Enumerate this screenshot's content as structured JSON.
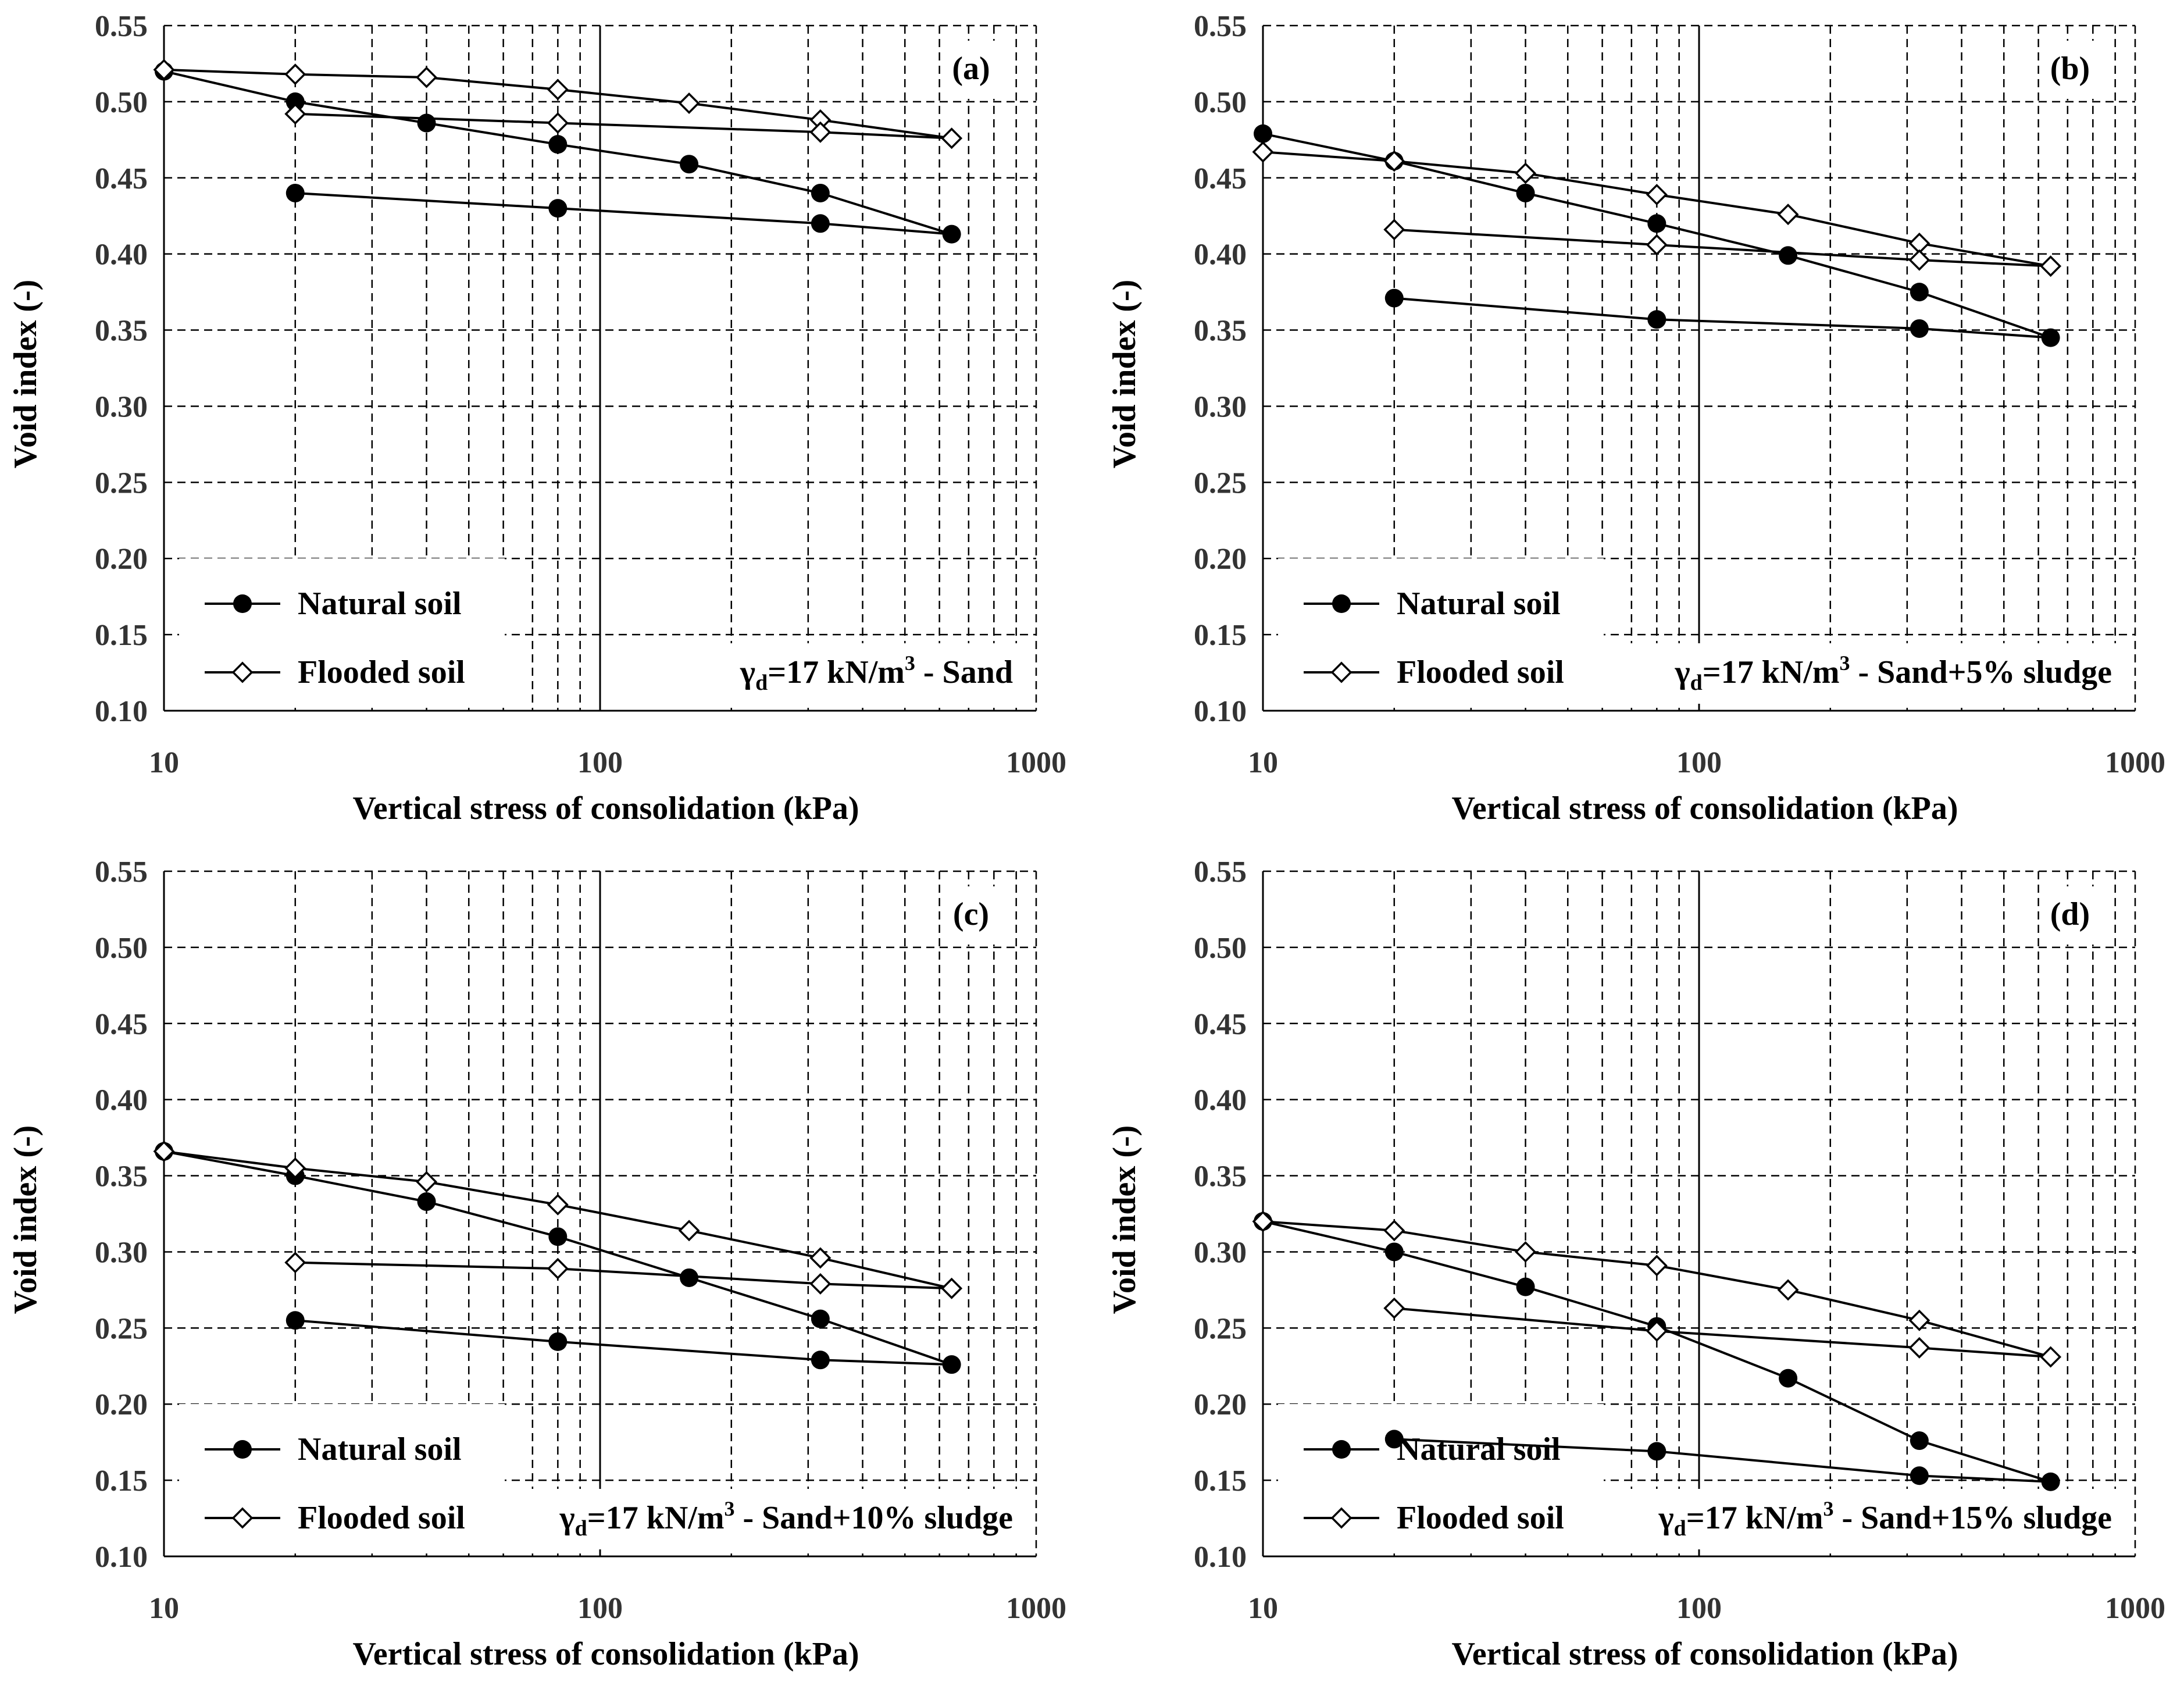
{
  "chart_data": [
    {
      "type": "line",
      "panel_label": "(a)",
      "annotation": {
        "gamma": "γ",
        "sub": "d",
        "pre": "=17 kN/m",
        "sup": "3",
        "post": " - Sand"
      },
      "xlabel": "Vertical stress of consolidation (kPa)",
      "ylabel": "Void index (-)",
      "x_scale": "log",
      "xlim": [
        10,
        1000
      ],
      "ylim": [
        0.1,
        0.55
      ],
      "x_ticks": [
        "10",
        "100",
        "1000"
      ],
      "y_ticks": [
        "0.10",
        "0.15",
        "0.20",
        "0.25",
        "0.30",
        "0.35",
        "0.40",
        "0.45",
        "0.50",
        "0.55"
      ],
      "legend_position": "bottom-left",
      "series": [
        {
          "name": "Natural soil",
          "marker": "filled-circle",
          "x": [
            10,
            20,
            40,
            80,
            160,
            320,
            640,
            320,
            80,
            20
          ],
          "y": [
            0.52,
            0.5,
            0.486,
            0.472,
            0.459,
            0.44,
            0.413,
            0.42,
            0.43,
            0.44
          ]
        },
        {
          "name": "Flooded soil",
          "marker": "open-diamond",
          "x": [
            10,
            20,
            40,
            80,
            160,
            320,
            640,
            320,
            80,
            20
          ],
          "y": [
            0.521,
            0.518,
            0.516,
            0.508,
            0.499,
            0.488,
            0.476,
            0.48,
            0.486,
            0.492
          ]
        }
      ]
    },
    {
      "type": "line",
      "panel_label": "(b)",
      "annotation": {
        "gamma": "γ",
        "sub": "d",
        "pre": "=17 kN/m",
        "sup": "3",
        "post": " - Sand+5% sludge"
      },
      "xlabel": "Vertical stress of consolidation (kPa)",
      "ylabel": "Void index (-)",
      "x_scale": "log",
      "xlim": [
        10,
        1000
      ],
      "ylim": [
        0.1,
        0.55
      ],
      "x_ticks": [
        "10",
        "100",
        "1000"
      ],
      "y_ticks": [
        "0.10",
        "0.15",
        "0.20",
        "0.25",
        "0.30",
        "0.35",
        "0.40",
        "0.45",
        "0.50",
        "0.55"
      ],
      "legend_position": "bottom-left",
      "series": [
        {
          "name": "Natural soil",
          "marker": "filled-circle",
          "x": [
            10,
            20,
            40,
            80,
            160,
            320,
            640,
            320,
            80,
            20
          ],
          "y": [
            0.479,
            0.461,
            0.44,
            0.42,
            0.399,
            0.375,
            0.345,
            0.351,
            0.357,
            0.371
          ]
        },
        {
          "name": "Flooded soil",
          "marker": "open-diamond",
          "x": [
            10,
            20,
            40,
            80,
            160,
            320,
            640,
            320,
            80,
            20
          ],
          "y": [
            0.467,
            0.461,
            0.453,
            0.439,
            0.426,
            0.407,
            0.392,
            0.396,
            0.406,
            0.416
          ]
        }
      ]
    },
    {
      "type": "line",
      "panel_label": "(c)",
      "annotation": {
        "gamma": "γ",
        "sub": "d",
        "pre": "=17 kN/m",
        "sup": "3",
        "post": " - Sand+10% sludge"
      },
      "xlabel": "Vertical stress of consolidation (kPa)",
      "ylabel": "Void index (-)",
      "x_scale": "log",
      "xlim": [
        10,
        1000
      ],
      "ylim": [
        0.1,
        0.55
      ],
      "x_ticks": [
        "10",
        "100",
        "1000"
      ],
      "y_ticks": [
        "0.10",
        "0.15",
        "0.20",
        "0.25",
        "0.30",
        "0.35",
        "0.40",
        "0.45",
        "0.50",
        "0.55"
      ],
      "legend_position": "bottom-left",
      "series": [
        {
          "name": "Natural soil",
          "marker": "filled-circle",
          "x": [
            10,
            20,
            40,
            80,
            160,
            320,
            640,
            320,
            80,
            20
          ],
          "y": [
            0.366,
            0.35,
            0.333,
            0.31,
            0.283,
            0.256,
            0.226,
            0.229,
            0.241,
            0.255
          ]
        },
        {
          "name": "Flooded soil",
          "marker": "open-diamond",
          "x": [
            10,
            20,
            40,
            80,
            160,
            320,
            640,
            320,
            80,
            20
          ],
          "y": [
            0.366,
            0.355,
            0.346,
            0.331,
            0.314,
            0.296,
            0.276,
            0.279,
            0.289,
            0.293
          ]
        }
      ]
    },
    {
      "type": "line",
      "panel_label": "(d)",
      "annotation": {
        "gamma": "γ",
        "sub": "d",
        "pre": "=17 kN/m",
        "sup": "3",
        "post": " - Sand+15% sludge"
      },
      "xlabel": "Vertical stress of consolidation (kPa)",
      "ylabel": "Void index (-)",
      "x_scale": "log",
      "xlim": [
        10,
        1000
      ],
      "ylim": [
        0.1,
        0.55
      ],
      "x_ticks": [
        "10",
        "100",
        "1000"
      ],
      "y_ticks": [
        "0.10",
        "0.15",
        "0.20",
        "0.25",
        "0.30",
        "0.35",
        "0.40",
        "0.45",
        "0.50",
        "0.55"
      ],
      "legend_position": "bottom-left",
      "series": [
        {
          "name": "Natural soil",
          "marker": "filled-circle",
          "x": [
            10,
            20,
            40,
            80,
            160,
            320,
            640,
            320,
            80,
            20
          ],
          "y": [
            0.32,
            0.3,
            0.277,
            0.251,
            0.217,
            0.176,
            0.149,
            0.153,
            0.169,
            0.177
          ]
        },
        {
          "name": "Flooded soil",
          "marker": "open-diamond",
          "x": [
            10,
            20,
            40,
            80,
            160,
            320,
            640,
            320,
            80,
            20
          ],
          "y": [
            0.32,
            0.314,
            0.3,
            0.291,
            0.275,
            0.255,
            0.231,
            0.237,
            0.248,
            0.263
          ]
        }
      ]
    }
  ]
}
